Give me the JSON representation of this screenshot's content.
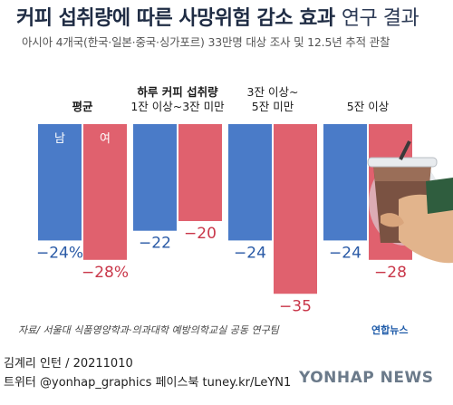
{
  "title": "커피 섭취량에 따른 사망위험 감소 효과",
  "title_suffix": "연구 결과",
  "subtitle": "아시아 4개국(한국·일본·중국·싱가포르) 33만명 대상 조사 및 12.5년 추적 관찰",
  "chart_data": {
    "type": "bar",
    "categories": [
      "평균",
      "1잔 이상~3잔 미만",
      "3잔 이상~5잔 미만",
      "5잔 이상"
    ],
    "category_header": "하루 커피 섭취량",
    "series": [
      {
        "name": "남",
        "values": [
          -24,
          -22,
          -24,
          -24
        ],
        "color": "#4a7bc8"
      },
      {
        "name": "여",
        "values": [
          -28,
          -20,
          -35,
          -28
        ],
        "color": "#e0616e"
      }
    ],
    "value_suffix": "%",
    "ylim": [
      -36,
      0
    ],
    "legend_placement": "inside-first-bars"
  },
  "labels": {
    "group_labels": [
      {
        "text": "평균",
        "bold": true
      },
      {
        "text_top": "하루 커피 섭취량",
        "text_bottom": "1잔 이상~3잔 미만"
      },
      {
        "text_top": "3잔 이상~",
        "text_bottom": "5잔 미만"
      },
      {
        "text": "5잔 이상"
      }
    ],
    "data_labels": [
      "−24%",
      "−28%",
      "−22",
      "−20",
      "−24",
      "−35",
      "−24",
      "−28"
    ]
  },
  "icon": "iced-coffee-cup-in-hand",
  "footer": {
    "source": "자료/ 서울대 식품영양학과·의과대학 예방의학교실 공동 연구팀",
    "brand": "연합뉴스",
    "byline": "김계리 인턴 / 20211010",
    "social": "트위터 @yonhap_graphics  페이스북 tuney.kr/LeYN1",
    "watermark": "YONHAP NEWS"
  }
}
